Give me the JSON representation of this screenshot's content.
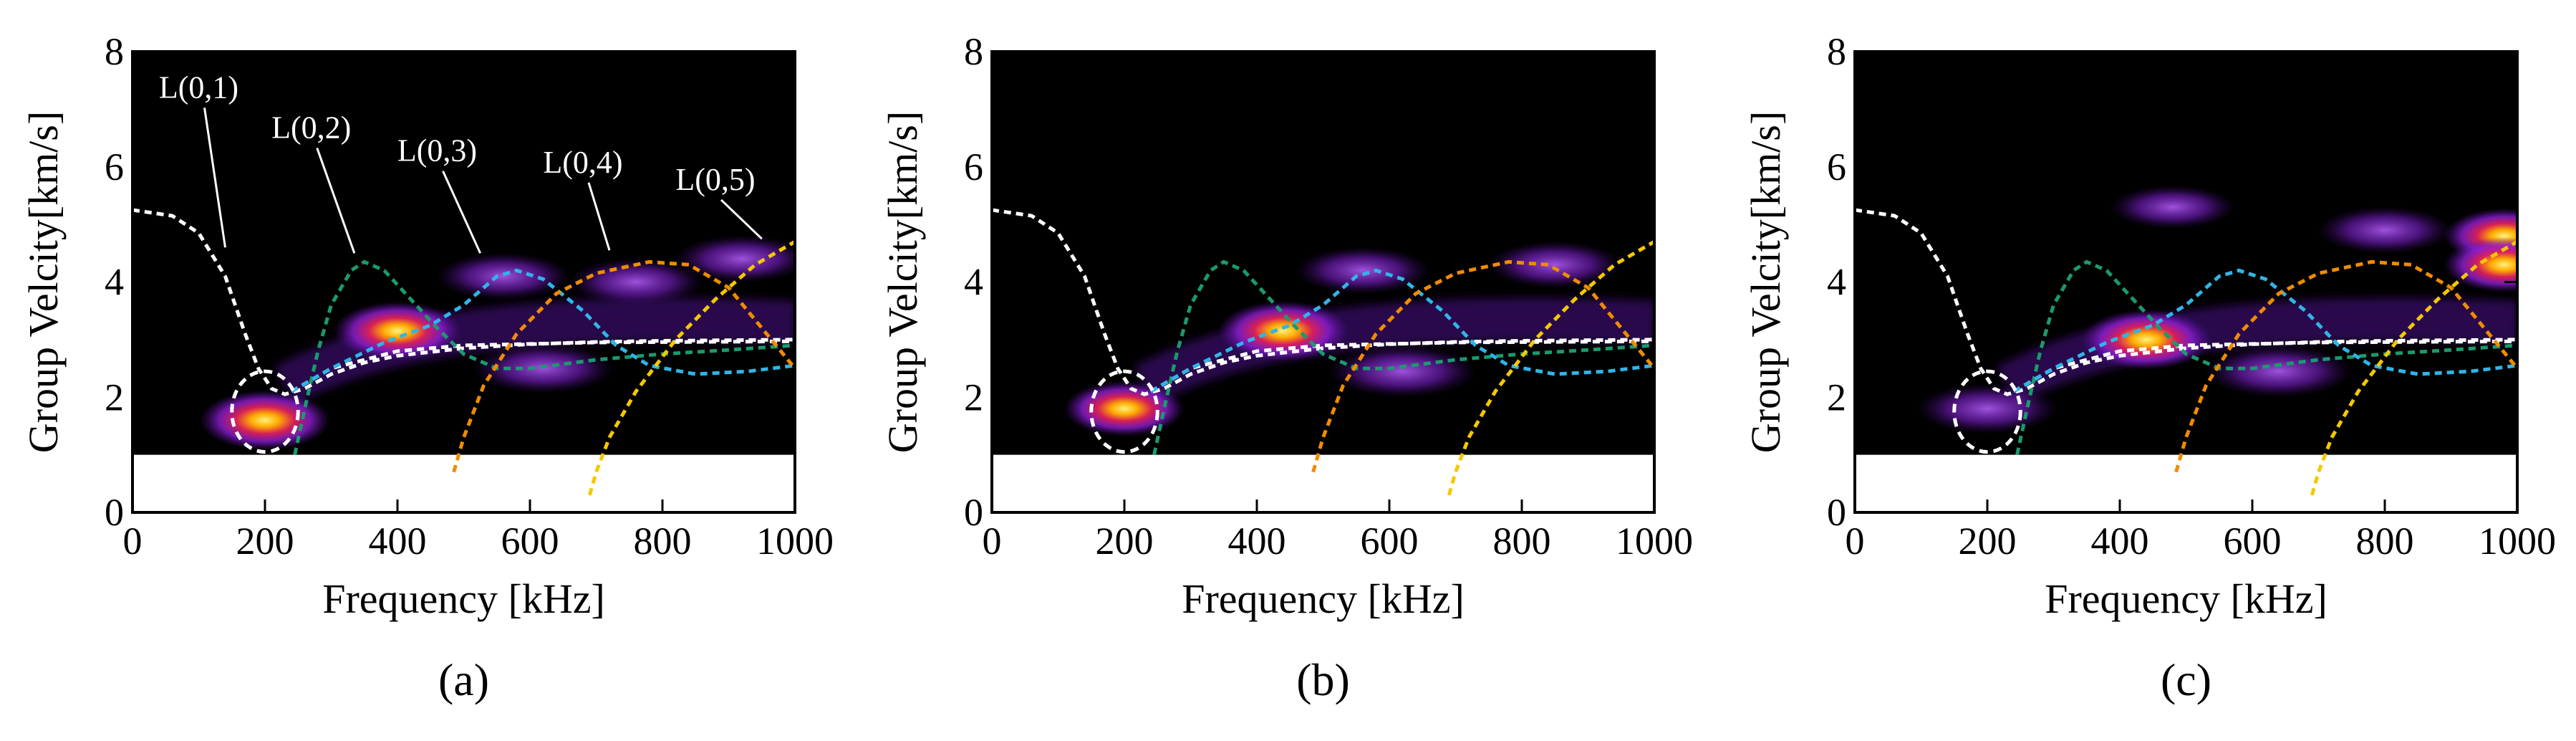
{
  "chart_data": {
    "type": "line",
    "panels": [
      {
        "panel_label": "(a)",
        "title": "",
        "xlabel": "Frequency [kHz]",
        "ylabel": "Group Velcity[km/s]",
        "xlim": [
          0,
          1000
        ],
        "ylim": [
          0,
          8
        ],
        "xticks": [
          "0",
          "200",
          "400",
          "600",
          "800",
          "1000"
        ],
        "yticks": [
          "0",
          "2",
          "4",
          "6",
          "8"
        ],
        "show_mode_labels": true,
        "background": "time-frequency spectrogram (black background, purple-orange-yellow intensity)",
        "hotspots": [
          {
            "f": 200,
            "v": 1.6,
            "intensity": 1.0
          },
          {
            "f": 400,
            "v": 3.15,
            "intensity": 0.95
          },
          {
            "f": 620,
            "v": 2.5,
            "intensity": 0.6
          },
          {
            "f": 560,
            "v": 4.1,
            "intensity": 0.5
          },
          {
            "f": 760,
            "v": 4.0,
            "intensity": 0.5
          },
          {
            "f": 920,
            "v": 4.4,
            "intensity": 0.5
          }
        ]
      },
      {
        "panel_label": "(b)",
        "title": "",
        "xlabel": "Frequency [kHz]",
        "ylabel": "Group Velcity[km/s]",
        "xlim": [
          0,
          1000
        ],
        "ylim": [
          0,
          8
        ],
        "xticks": [
          "0",
          "200",
          "400",
          "600",
          "800",
          "1000"
        ],
        "yticks": [
          "0",
          "2",
          "4",
          "6",
          "8"
        ],
        "show_mode_labels": false,
        "hotspots": [
          {
            "f": 200,
            "v": 1.8,
            "intensity": 0.8
          },
          {
            "f": 440,
            "v": 3.15,
            "intensity": 1.0
          },
          {
            "f": 620,
            "v": 2.45,
            "intensity": 0.7
          },
          {
            "f": 560,
            "v": 4.2,
            "intensity": 0.5
          },
          {
            "f": 850,
            "v": 4.3,
            "intensity": 0.5
          }
        ]
      },
      {
        "panel_label": "(c)",
        "title": "",
        "xlabel": "Frequency [kHz]",
        "ylabel": "Group Velcity[km/s]",
        "xlim": [
          0,
          1000
        ],
        "ylim": [
          0,
          8
        ],
        "xticks": [
          "0",
          "200",
          "400",
          "600",
          "800",
          "1000"
        ],
        "yticks": [
          "0",
          "2",
          "4",
          "6",
          "8"
        ],
        "show_mode_labels": false,
        "hotspots": [
          {
            "f": 200,
            "v": 1.8,
            "intensity": 0.6
          },
          {
            "f": 440,
            "v": 3.0,
            "intensity": 1.0
          },
          {
            "f": 640,
            "v": 2.45,
            "intensity": 0.7
          },
          {
            "f": 800,
            "v": 4.9,
            "intensity": 0.5
          },
          {
            "f": 980,
            "v": 4.8,
            "intensity": 0.8
          },
          {
            "f": 980,
            "v": 4.3,
            "intensity": 0.8
          },
          {
            "f": 480,
            "v": 5.3,
            "intensity": 0.35
          }
        ]
      }
    ],
    "series": [
      {
        "name": "L(0,1)",
        "color": "#ffffff",
        "points": [
          [
            0,
            5.25
          ],
          [
            60,
            5.15
          ],
          [
            100,
            4.85
          ],
          [
            140,
            4.1
          ],
          [
            170,
            3.1
          ],
          [
            190,
            2.5
          ],
          [
            210,
            2.15
          ],
          [
            230,
            2.05
          ],
          [
            260,
            2.15
          ],
          [
            300,
            2.4
          ],
          [
            350,
            2.6
          ],
          [
            400,
            2.72
          ],
          [
            500,
            2.85
          ],
          [
            600,
            2.92
          ],
          [
            700,
            2.96
          ],
          [
            800,
            2.98
          ],
          [
            1000,
            3.0
          ]
        ]
      },
      {
        "name": "L(0,1) second",
        "color": "#ffffff",
        "points": [
          [
            240,
            2.1
          ],
          [
            300,
            2.5
          ],
          [
            400,
            2.8
          ],
          [
            500,
            2.9
          ],
          [
            700,
            2.95
          ],
          [
            1000,
            2.97
          ]
        ]
      },
      {
        "name": "L(0,2)",
        "color": "#1a9a6e",
        "points": [
          [
            245,
            1.0
          ],
          [
            260,
            1.8
          ],
          [
            280,
            2.8
          ],
          [
            300,
            3.6
          ],
          [
            330,
            4.2
          ],
          [
            350,
            4.35
          ],
          [
            380,
            4.2
          ],
          [
            420,
            3.7
          ],
          [
            460,
            3.2
          ],
          [
            500,
            2.75
          ],
          [
            550,
            2.5
          ],
          [
            600,
            2.5
          ],
          [
            700,
            2.65
          ],
          [
            800,
            2.75
          ],
          [
            900,
            2.82
          ],
          [
            1000,
            2.9
          ]
        ]
      },
      {
        "name": "L(0,3)",
        "color": "#2fb5e8",
        "points": [
          [
            240,
            2.1
          ],
          [
            300,
            2.5
          ],
          [
            380,
            2.95
          ],
          [
            450,
            3.25
          ],
          [
            500,
            3.6
          ],
          [
            550,
            4.1
          ],
          [
            580,
            4.2
          ],
          [
            620,
            4.05
          ],
          [
            680,
            3.5
          ],
          [
            730,
            2.9
          ],
          [
            780,
            2.55
          ],
          [
            850,
            2.4
          ],
          [
            930,
            2.45
          ],
          [
            1000,
            2.55
          ]
        ]
      },
      {
        "name": "L(0,4)",
        "color": "#f08c00",
        "points": [
          [
            485,
            0.7
          ],
          [
            500,
            1.3
          ],
          [
            530,
            2.2
          ],
          [
            580,
            3.1
          ],
          [
            640,
            3.8
          ],
          [
            700,
            4.15
          ],
          [
            780,
            4.35
          ],
          [
            840,
            4.3
          ],
          [
            900,
            3.9
          ],
          [
            950,
            3.2
          ],
          [
            1000,
            2.5
          ]
        ]
      },
      {
        "name": "L(0,5)",
        "color": "#f5c800",
        "points": [
          [
            690,
            0.3
          ],
          [
            700,
            0.7
          ],
          [
            720,
            1.3
          ],
          [
            760,
            2.1
          ],
          [
            820,
            3.0
          ],
          [
            880,
            3.7
          ],
          [
            940,
            4.3
          ],
          [
            1000,
            4.7
          ]
        ]
      }
    ],
    "annotations": [
      {
        "text": "L(0,1)",
        "label_at": [
          100,
          7.2
        ],
        "arrow_to": [
          140,
          4.6
        ]
      },
      {
        "text": "L(0,2)",
        "label_at": [
          270,
          6.5
        ],
        "arrow_to": [
          335,
          4.5
        ]
      },
      {
        "text": "L(0,3)",
        "label_at": [
          460,
          6.1
        ],
        "arrow_to": [
          525,
          4.5
        ]
      },
      {
        "text": "L(0,4)",
        "label_at": [
          680,
          5.9
        ],
        "arrow_to": [
          720,
          4.55
        ]
      },
      {
        "text": "L(0,5)",
        "label_at": [
          880,
          5.6
        ],
        "arrow_to": [
          950,
          4.75
        ]
      }
    ],
    "circle_marker": {
      "f": 200,
      "v": 1.75,
      "radius_f": 50,
      "radius_v": 0.7
    },
    "blank_region": {
      "v_below": 1.0
    }
  }
}
